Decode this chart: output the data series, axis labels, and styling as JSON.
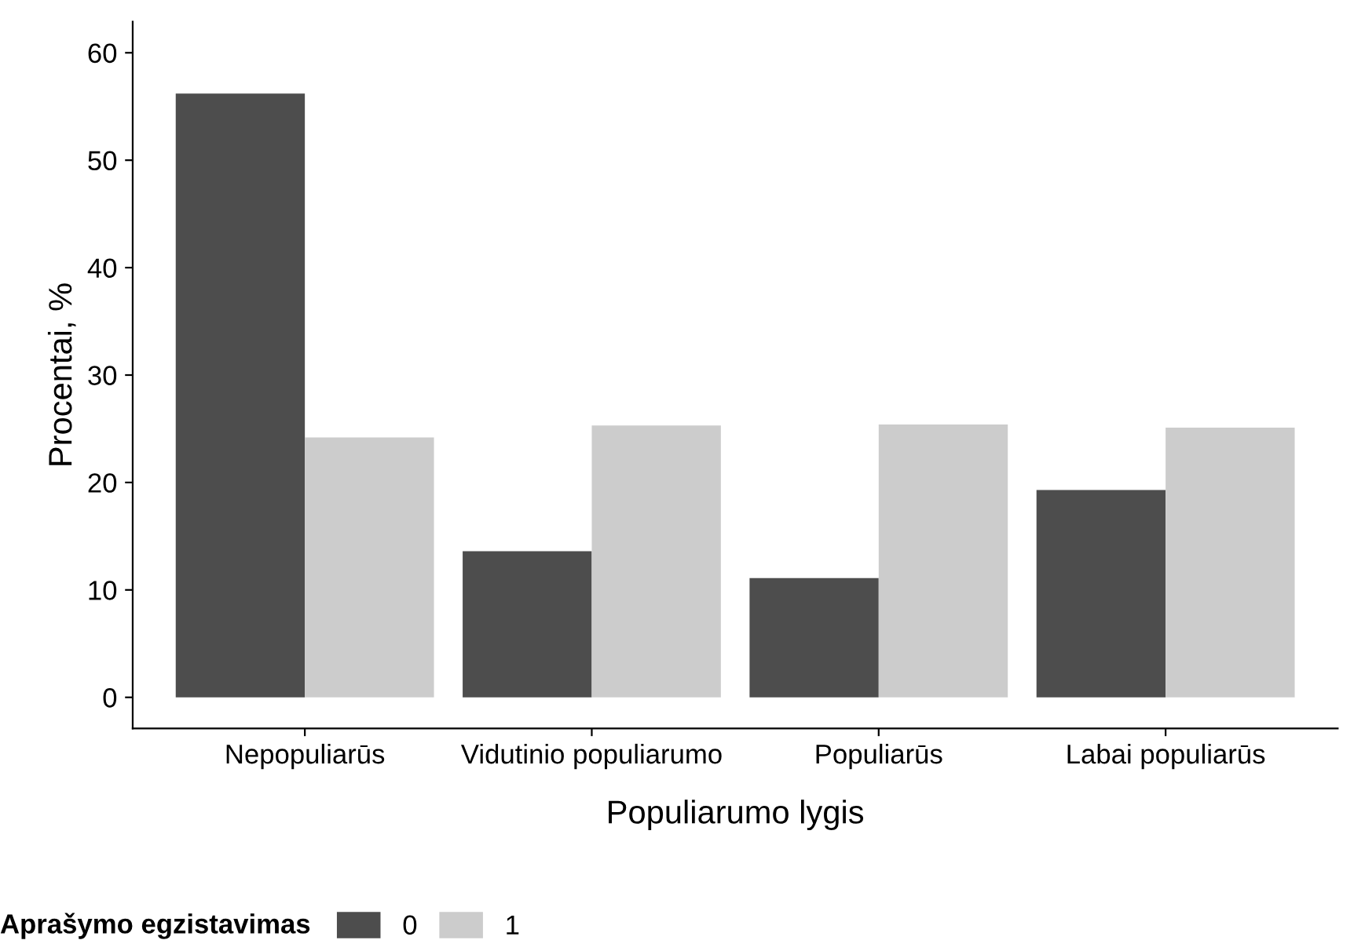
{
  "chart_data": {
    "type": "bar",
    "xlabel": "Populiarumo lygis",
    "ylabel": "Procentai, %",
    "legend_title": "Aprašymo egzistavimas",
    "categories": [
      "Nepopuliarūs",
      "Vidutinio populiarumo",
      "Populiarūs",
      "Labai populiarūs"
    ],
    "series": [
      {
        "name": "0",
        "color": "#4d4d4d",
        "values": [
          56.2,
          13.6,
          11.1,
          19.3
        ]
      },
      {
        "name": "1",
        "color": "#cccccc",
        "values": [
          24.2,
          25.3,
          25.4,
          25.1
        ]
      }
    ],
    "ylim": [
      -2.9,
      62.9
    ],
    "yticks": [
      0,
      10,
      20,
      30,
      40,
      50,
      60
    ],
    "grid": false,
    "legend": "bottom"
  }
}
